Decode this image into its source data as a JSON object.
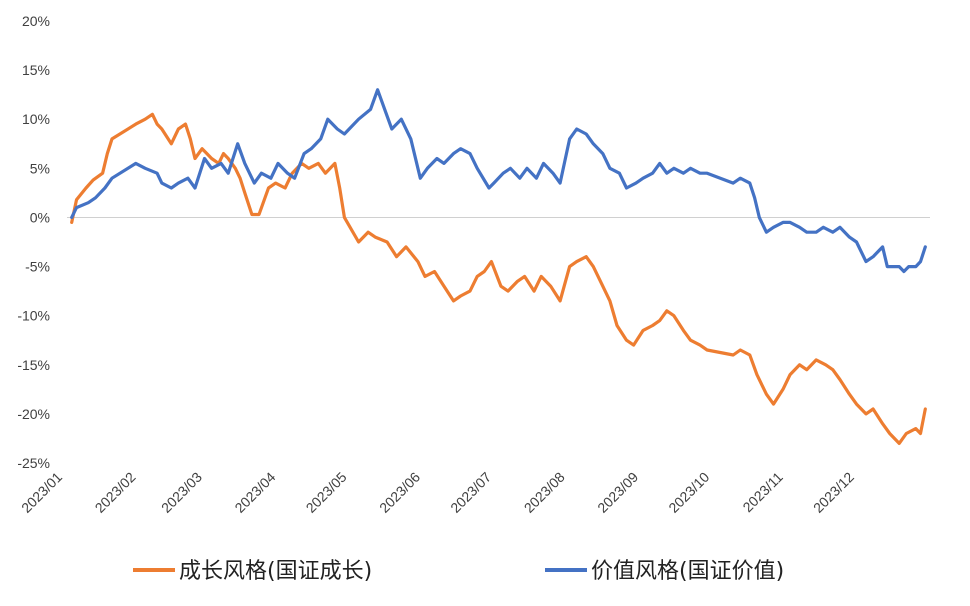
{
  "chart_data": {
    "type": "line",
    "x_type": "date",
    "x_ticks": [
      "2023/01",
      "2023/02",
      "2023/03",
      "2023/04",
      "2023/05",
      "2023/06",
      "2023/07",
      "2023/08",
      "2023/09",
      "2023/10",
      "2023/11",
      "2023/12"
    ],
    "y_ticks": [
      "20%",
      "15%",
      "10%",
      "5%",
      "0%",
      "-5%",
      "-10%",
      "-15%",
      "-20%",
      "-25%"
    ],
    "ylim": [
      -25,
      20
    ],
    "xlim": [
      "2023-01-01",
      "2023-12-31"
    ],
    "grid": false,
    "legend_position": "bottom",
    "series": [
      {
        "name": "成长风格(国证成长)",
        "color": "#ED7D31",
        "points": [
          [
            "2023-01-03",
            -0.5
          ],
          [
            "2023-01-05",
            1.8
          ],
          [
            "2023-01-09",
            3.0
          ],
          [
            "2023-01-12",
            3.8
          ],
          [
            "2023-01-16",
            4.5
          ],
          [
            "2023-01-18",
            6.5
          ],
          [
            "2023-01-20",
            8.0
          ],
          [
            "2023-01-30",
            9.5
          ],
          [
            "2023-02-03",
            10.0
          ],
          [
            "2023-02-06",
            10.5
          ],
          [
            "2023-02-08",
            9.5
          ],
          [
            "2023-02-10",
            9.0
          ],
          [
            "2023-02-14",
            7.5
          ],
          [
            "2023-02-17",
            9.0
          ],
          [
            "2023-02-20",
            9.5
          ],
          [
            "2023-02-22",
            8.0
          ],
          [
            "2023-02-24",
            6.0
          ],
          [
            "2023-02-27",
            7.0
          ],
          [
            "2023-03-01",
            6.5
          ],
          [
            "2023-03-03",
            6.0
          ],
          [
            "2023-03-06",
            5.5
          ],
          [
            "2023-03-08",
            6.5
          ],
          [
            "2023-03-10",
            6.0
          ],
          [
            "2023-03-13",
            5.0
          ],
          [
            "2023-03-15",
            4.0
          ],
          [
            "2023-03-17",
            2.5
          ],
          [
            "2023-03-20",
            0.3
          ],
          [
            "2023-03-23",
            0.3
          ],
          [
            "2023-03-27",
            3.0
          ],
          [
            "2023-03-30",
            3.5
          ],
          [
            "2023-04-03",
            3.0
          ],
          [
            "2023-04-06",
            4.5
          ],
          [
            "2023-04-10",
            5.5
          ],
          [
            "2023-04-13",
            5.0
          ],
          [
            "2023-04-17",
            5.5
          ],
          [
            "2023-04-20",
            4.5
          ],
          [
            "2023-04-24",
            5.5
          ],
          [
            "2023-04-26",
            3.0
          ],
          [
            "2023-04-28",
            0.0
          ],
          [
            "2023-05-04",
            -2.5
          ],
          [
            "2023-05-08",
            -1.5
          ],
          [
            "2023-05-11",
            -2.0
          ],
          [
            "2023-05-16",
            -2.5
          ],
          [
            "2023-05-20",
            -4.0
          ],
          [
            "2023-05-24",
            -3.0
          ],
          [
            "2023-05-29",
            -4.5
          ],
          [
            "2023-06-01",
            -6.0
          ],
          [
            "2023-06-05",
            -5.5
          ],
          [
            "2023-06-09",
            -7.0
          ],
          [
            "2023-06-13",
            -8.5
          ],
          [
            "2023-06-16",
            -8.0
          ],
          [
            "2023-06-20",
            -7.5
          ],
          [
            "2023-06-23",
            -6.0
          ],
          [
            "2023-06-26",
            -5.5
          ],
          [
            "2023-06-29",
            -4.5
          ],
          [
            "2023-07-03",
            -7.0
          ],
          [
            "2023-07-06",
            -7.5
          ],
          [
            "2023-07-10",
            -6.5
          ],
          [
            "2023-07-13",
            -6.0
          ],
          [
            "2023-07-17",
            -7.5
          ],
          [
            "2023-07-20",
            -6.0
          ],
          [
            "2023-07-24",
            -7.0
          ],
          [
            "2023-07-28",
            -8.5
          ],
          [
            "2023-08-01",
            -5.0
          ],
          [
            "2023-08-04",
            -4.5
          ],
          [
            "2023-08-08",
            -4.0
          ],
          [
            "2023-08-11",
            -5.0
          ],
          [
            "2023-08-15",
            -7.0
          ],
          [
            "2023-08-18",
            -8.5
          ],
          [
            "2023-08-21",
            -11.0
          ],
          [
            "2023-08-25",
            -12.5
          ],
          [
            "2023-08-28",
            -13.0
          ],
          [
            "2023-09-01",
            -11.5
          ],
          [
            "2023-09-05",
            -11.0
          ],
          [
            "2023-09-08",
            -10.5
          ],
          [
            "2023-09-11",
            -9.5
          ],
          [
            "2023-09-14",
            -10.0
          ],
          [
            "2023-09-18",
            -11.5
          ],
          [
            "2023-09-21",
            -12.5
          ],
          [
            "2023-09-25",
            -13.0
          ],
          [
            "2023-09-28",
            -13.5
          ],
          [
            "2023-10-09",
            -14.0
          ],
          [
            "2023-10-12",
            -13.5
          ],
          [
            "2023-10-16",
            -14.0
          ],
          [
            "2023-10-19",
            -16.0
          ],
          [
            "2023-10-23",
            -18.0
          ],
          [
            "2023-10-26",
            -19.0
          ],
          [
            "2023-10-30",
            -17.5
          ],
          [
            "2023-11-02",
            -16.0
          ],
          [
            "2023-11-06",
            -15.0
          ],
          [
            "2023-11-09",
            -15.5
          ],
          [
            "2023-11-13",
            -14.5
          ],
          [
            "2023-11-17",
            -15.0
          ],
          [
            "2023-11-20",
            -15.5
          ],
          [
            "2023-11-23",
            -16.5
          ],
          [
            "2023-11-27",
            -18.0
          ],
          [
            "2023-11-30",
            -19.0
          ],
          [
            "2023-12-04",
            -20.0
          ],
          [
            "2023-12-07",
            -19.5
          ],
          [
            "2023-12-11",
            -21.0
          ],
          [
            "2023-12-14",
            -22.0
          ],
          [
            "2023-12-18",
            -23.0
          ],
          [
            "2023-12-21",
            -22.0
          ],
          [
            "2023-12-25",
            -21.5
          ],
          [
            "2023-12-27",
            -22.0
          ],
          [
            "2023-12-29",
            -19.5
          ]
        ]
      },
      {
        "name": "价值风格(国证价值)",
        "color": "#4472C4",
        "points": [
          [
            "2023-01-03",
            0.0
          ],
          [
            "2023-01-05",
            1.0
          ],
          [
            "2023-01-10",
            1.5
          ],
          [
            "2023-01-13",
            2.0
          ],
          [
            "2023-01-17",
            3.0
          ],
          [
            "2023-01-20",
            4.0
          ],
          [
            "2023-01-30",
            5.5
          ],
          [
            "2023-02-03",
            5.0
          ],
          [
            "2023-02-08",
            4.5
          ],
          [
            "2023-02-10",
            3.5
          ],
          [
            "2023-02-14",
            3.0
          ],
          [
            "2023-02-17",
            3.5
          ],
          [
            "2023-02-21",
            4.0
          ],
          [
            "2023-02-24",
            3.0
          ],
          [
            "2023-02-28",
            6.0
          ],
          [
            "2023-03-03",
            5.0
          ],
          [
            "2023-03-07",
            5.5
          ],
          [
            "2023-03-10",
            4.5
          ],
          [
            "2023-03-14",
            7.5
          ],
          [
            "2023-03-17",
            5.5
          ],
          [
            "2023-03-21",
            3.5
          ],
          [
            "2023-03-24",
            4.5
          ],
          [
            "2023-03-28",
            4.0
          ],
          [
            "2023-03-31",
            5.5
          ],
          [
            "2023-04-04",
            4.5
          ],
          [
            "2023-04-07",
            4.0
          ],
          [
            "2023-04-11",
            6.5
          ],
          [
            "2023-04-14",
            7.0
          ],
          [
            "2023-04-18",
            8.0
          ],
          [
            "2023-04-21",
            10.0
          ],
          [
            "2023-04-25",
            9.0
          ],
          [
            "2023-04-28",
            8.5
          ],
          [
            "2023-05-04",
            10.0
          ],
          [
            "2023-05-09",
            11.0
          ],
          [
            "2023-05-12",
            13.0
          ],
          [
            "2023-05-15",
            11.0
          ],
          [
            "2023-05-18",
            9.0
          ],
          [
            "2023-05-22",
            10.0
          ],
          [
            "2023-05-26",
            8.0
          ],
          [
            "2023-05-30",
            4.0
          ],
          [
            "2023-06-02",
            5.0
          ],
          [
            "2023-06-06",
            6.0
          ],
          [
            "2023-06-09",
            5.5
          ],
          [
            "2023-06-13",
            6.5
          ],
          [
            "2023-06-16",
            7.0
          ],
          [
            "2023-06-20",
            6.5
          ],
          [
            "2023-06-23",
            5.0
          ],
          [
            "2023-06-28",
            3.0
          ],
          [
            "2023-06-30",
            3.5
          ],
          [
            "2023-07-04",
            4.5
          ],
          [
            "2023-07-07",
            5.0
          ],
          [
            "2023-07-11",
            4.0
          ],
          [
            "2023-07-14",
            5.0
          ],
          [
            "2023-07-18",
            4.0
          ],
          [
            "2023-07-21",
            5.5
          ],
          [
            "2023-07-25",
            4.5
          ],
          [
            "2023-07-28",
            3.5
          ],
          [
            "2023-08-01",
            8.0
          ],
          [
            "2023-08-04",
            9.0
          ],
          [
            "2023-08-08",
            8.5
          ],
          [
            "2023-08-11",
            7.5
          ],
          [
            "2023-08-15",
            6.5
          ],
          [
            "2023-08-18",
            5.0
          ],
          [
            "2023-08-22",
            4.5
          ],
          [
            "2023-08-25",
            3.0
          ],
          [
            "2023-08-29",
            3.5
          ],
          [
            "2023-09-01",
            4.0
          ],
          [
            "2023-09-05",
            4.5
          ],
          [
            "2023-09-08",
            5.5
          ],
          [
            "2023-09-11",
            4.5
          ],
          [
            "2023-09-14",
            5.0
          ],
          [
            "2023-09-18",
            4.5
          ],
          [
            "2023-09-21",
            5.0
          ],
          [
            "2023-09-25",
            4.5
          ],
          [
            "2023-09-28",
            4.5
          ],
          [
            "2023-10-09",
            3.5
          ],
          [
            "2023-10-12",
            4.0
          ],
          [
            "2023-10-16",
            3.5
          ],
          [
            "2023-10-18",
            2.0
          ],
          [
            "2023-10-20",
            0.0
          ],
          [
            "2023-10-23",
            -1.5
          ],
          [
            "2023-10-26",
            -1.0
          ],
          [
            "2023-10-30",
            -0.5
          ],
          [
            "2023-11-02",
            -0.5
          ],
          [
            "2023-11-06",
            -1.0
          ],
          [
            "2023-11-09",
            -1.5
          ],
          [
            "2023-11-13",
            -1.5
          ],
          [
            "2023-11-16",
            -1.0
          ],
          [
            "2023-11-20",
            -1.5
          ],
          [
            "2023-11-23",
            -1.0
          ],
          [
            "2023-11-27",
            -2.0
          ],
          [
            "2023-11-30",
            -2.5
          ],
          [
            "2023-12-04",
            -4.5
          ],
          [
            "2023-12-07",
            -4.0
          ],
          [
            "2023-12-11",
            -3.0
          ],
          [
            "2023-12-13",
            -5.0
          ],
          [
            "2023-12-18",
            -5.0
          ],
          [
            "2023-12-20",
            -5.5
          ],
          [
            "2023-12-22",
            -5.0
          ],
          [
            "2023-12-25",
            -5.0
          ],
          [
            "2023-12-27",
            -4.5
          ],
          [
            "2023-12-29",
            -3.0
          ]
        ]
      }
    ]
  }
}
